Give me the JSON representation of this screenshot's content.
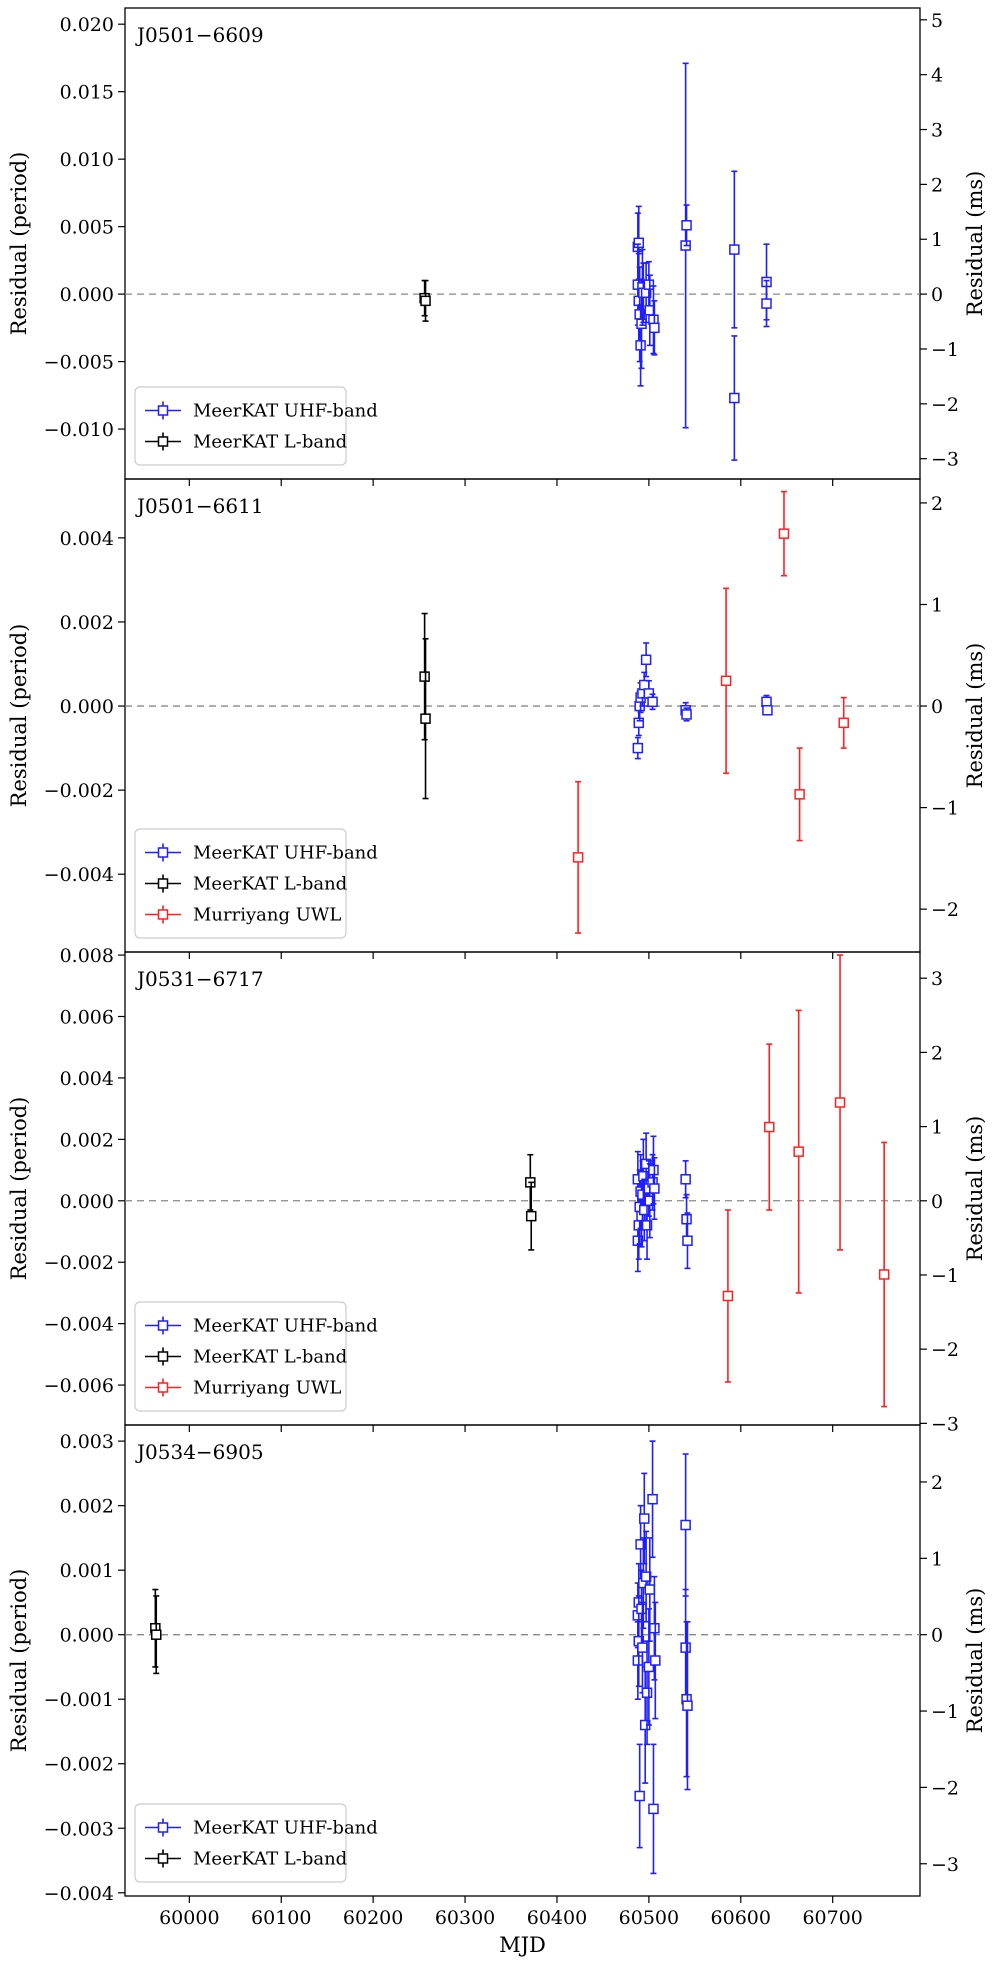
{
  "chart_data": {
    "type": "scatter",
    "subtype": "timing residuals with error bars",
    "xlabel": "MJD",
    "xlim": [
      59930,
      60795
    ],
    "xticks": [
      60000,
      60100,
      60200,
      60300,
      60400,
      60500,
      60600,
      60700
    ],
    "xtick_labels": [
      "60000",
      "60100",
      "60200",
      "60300",
      "60400",
      "60500",
      "60600",
      "60700"
    ],
    "ylabel_left": "Residual (period)",
    "ylabel_right": "Residual (ms)",
    "grid": false,
    "legend_location": "lower-left",
    "series_styles": {
      "MeerKAT UHF-band": "#1f1fff",
      "MeerKAT L-band": "#000000",
      "Murriyang UWL": "#ff2020"
    },
    "panels": [
      {
        "pulsar": "J0501−6609",
        "ylim": [
          -0.0137,
          0.0212
        ],
        "yticks": [
          -0.01,
          -0.005,
          0.0,
          0.005,
          0.01,
          0.015,
          0.02
        ],
        "ytick_labels": [
          "−0.010",
          "−0.005",
          "0.000",
          "0.005",
          "0.010",
          "0.015",
          "0.020"
        ],
        "ms_per_period": 246,
        "right_ticks": [
          -3,
          -2,
          -1,
          0,
          1,
          2,
          3,
          4,
          5
        ],
        "right_tick_labels": [
          "−3",
          "−2",
          "−1",
          "0",
          "1",
          "2",
          "3",
          "4",
          "5"
        ],
        "legend": [
          "MeerKAT UHF-band",
          "MeerKAT L-band"
        ],
        "series": [
          {
            "name": "MeerKAT UHF-band",
            "points": [
              [
                60488,
                0.0035,
                0.0025
              ],
              [
                60489,
                0.0038,
                0.0027
              ],
              [
                60488,
                0.0007,
                0.003
              ],
              [
                60489,
                -0.0005,
                0.0035
              ],
              [
                60490,
                -0.0015,
                0.0035
              ],
              [
                60491,
                -0.0038,
                0.003
              ],
              [
                60492,
                -0.0022,
                0.0033
              ],
              [
                60493,
                0.0005,
                0.0028
              ],
              [
                60494,
                0.0001,
                0.0022
              ],
              [
                60497,
                0.0001,
                0.0022
              ],
              [
                60500,
                0.0007,
                0.0017
              ],
              [
                60501,
                -0.0012,
                0.0026
              ],
              [
                60505,
                -0.0019,
                0.0025
              ],
              [
                60506,
                -0.0025,
                0.002
              ],
              [
                60540,
                0.0036,
                0.0135
              ],
              [
                60541,
                0.0051,
                0.0015
              ],
              [
                60593,
                0.0033,
                0.0058
              ],
              [
                60593,
                -0.0077,
                0.0046
              ],
              [
                60628,
                0.0009,
                0.0028
              ],
              [
                60628,
                -0.0007,
                0.0017
              ]
            ]
          },
          {
            "name": "MeerKAT L-band",
            "points": [
              [
                60256,
                -0.0003,
                0.0013
              ],
              [
                60257,
                -0.0005,
                0.0015
              ]
            ]
          }
        ]
      },
      {
        "pulsar": "J0501−6611",
        "ylim": [
          -0.00585,
          0.0054
        ],
        "yticks": [
          -0.004,
          -0.002,
          0.0,
          0.002,
          0.004
        ],
        "ytick_labels": [
          "−0.004",
          "−0.002",
          "0.000",
          "0.002",
          "0.004"
        ],
        "ms_per_period": 414,
        "right_ticks": [
          -2,
          -1,
          0,
          1,
          2
        ],
        "right_tick_labels": [
          "−2",
          "−1",
          "0",
          "1",
          "2"
        ],
        "legend": [
          "MeerKAT UHF-band",
          "MeerKAT L-band",
          "Murriyang UWL"
        ],
        "series": [
          {
            "name": "MeerKAT UHF-band",
            "points": [
              [
                60488,
                -0.001,
                0.00025
              ],
              [
                60489,
                -0.0004,
                0.0003
              ],
              [
                60490,
                0.0,
                0.00035
              ],
              [
                60491,
                0.0002,
                0.00035
              ],
              [
                60493,
                0.0003,
                0.0003
              ],
              [
                60495,
                0.0005,
                0.0003
              ],
              [
                60497,
                0.0011,
                0.0004
              ],
              [
                60500,
                0.0003,
                0.0003
              ],
              [
                60504,
                0.0001,
                0.00018
              ],
              [
                60540,
                -0.0001,
                0.00018
              ],
              [
                60541,
                -0.0002,
                0.00015
              ],
              [
                60628,
                0.0001,
                0.00015
              ],
              [
                60629,
                -0.0001,
                0.0001
              ]
            ]
          },
          {
            "name": "MeerKAT L-band",
            "points": [
              [
                60256,
                0.0007,
                0.0015
              ],
              [
                60257,
                -0.0003,
                0.0019
              ]
            ]
          },
          {
            "name": "Murriyang UWL",
            "points": [
              [
                60423,
                -0.0036,
                0.0018
              ],
              [
                60584,
                0.0006,
                0.0022
              ],
              [
                60647,
                0.0041,
                0.001
              ],
              [
                60664,
                -0.0021,
                0.0011
              ],
              [
                60712,
                -0.0004,
                0.0006
              ]
            ]
          }
        ]
      },
      {
        "pulsar": "J0531−6717",
        "ylim": [
          -0.0073,
          0.0081
        ],
        "yticks": [
          -0.006,
          -0.004,
          -0.002,
          0.0,
          0.002,
          0.004,
          0.006,
          0.008
        ],
        "ytick_labels": [
          "−0.006",
          "−0.004",
          "−0.002",
          "0.000",
          "0.002",
          "0.004",
          "0.006",
          "0.008"
        ],
        "ms_per_period": 414,
        "right_ticks": [
          -3,
          -2,
          -1,
          0,
          1,
          2,
          3
        ],
        "right_tick_labels": [
          "−3",
          "−2",
          "−1",
          "0",
          "1",
          "2",
          "3"
        ],
        "legend": [
          "MeerKAT UHF-band",
          "MeerKAT L-band",
          "Murriyang UWL"
        ],
        "series": [
          {
            "name": "MeerKAT UHF-band",
            "points": [
              [
                60488,
                0.0007,
                0.0009
              ],
              [
                60488,
                -0.0013,
                0.001
              ],
              [
                60489,
                -0.0008,
                0.0011
              ],
              [
                60490,
                -0.0002,
                0.0012
              ],
              [
                60491,
                0.0003,
                0.0012
              ],
              [
                60492,
                -0.0005,
                0.001
              ],
              [
                60493,
                0.0002,
                0.0011
              ],
              [
                60494,
                0.0008,
                0.0012
              ],
              [
                60495,
                -0.0003,
                0.001
              ],
              [
                60497,
                0.0012,
                0.001
              ],
              [
                60498,
                -0.0008,
                0.0011
              ],
              [
                60500,
                0.0004,
                0.0009
              ],
              [
                60501,
                0.0,
                0.0012
              ],
              [
                60504,
                0.0006,
                0.0009
              ],
              [
                60505,
                0.001,
                0.0011
              ],
              [
                60506,
                0.0004,
                0.001
              ],
              [
                60540,
                0.0007,
                0.0006
              ],
              [
                60541,
                -0.0006,
                0.0008
              ],
              [
                60542,
                -0.0013,
                0.0009
              ]
            ]
          },
          {
            "name": "MeerKAT L-band",
            "points": [
              [
                60371,
                0.0006,
                0.0009
              ],
              [
                60372,
                -0.0005,
                0.0011
              ]
            ]
          },
          {
            "name": "Murriyang UWL",
            "points": [
              [
                60586,
                -0.0031,
                0.0028
              ],
              [
                60631,
                0.0024,
                0.0027
              ],
              [
                60663,
                0.0016,
                0.0046
              ],
              [
                60708,
                0.0032,
                0.0048
              ],
              [
                60756,
                -0.0024,
                0.0043
              ]
            ]
          }
        ]
      },
      {
        "pulsar": "J0534−6905",
        "ylim": [
          -0.00405,
          0.00325
        ],
        "yticks": [
          -0.004,
          -0.003,
          -0.002,
          -0.001,
          0.0,
          0.001,
          0.002,
          0.003
        ],
        "ytick_labels": [
          "−0.004",
          "−0.003",
          "−0.002",
          "−0.001",
          "0.000",
          "0.001",
          "0.002",
          "0.003"
        ],
        "ms_per_period": 845,
        "right_ticks": [
          -3,
          -2,
          -1,
          0,
          1,
          2
        ],
        "right_tick_labels": [
          "−3",
          "−2",
          "−1",
          "0",
          "1",
          "2"
        ],
        "legend": [
          "MeerKAT UHF-band",
          "MeerKAT L-band"
        ],
        "series": [
          {
            "name": "MeerKAT UHF-band",
            "points": [
              [
                60488,
                0.0003,
                0.0005
              ],
              [
                60488,
                -0.0004,
                0.0006
              ],
              [
                60489,
                0.0005,
                0.0006
              ],
              [
                60489,
                -0.0001,
                0.0007
              ],
              [
                60490,
                -0.0025,
                0.0008
              ],
              [
                60491,
                0.0014,
                0.0006
              ],
              [
                60492,
                0.0004,
                0.0006
              ],
              [
                60493,
                -0.0002,
                0.0007
              ],
              [
                60494,
                0.0008,
                0.0007
              ],
              [
                60495,
                0.0018,
                0.0007
              ],
              [
                60496,
                -0.0014,
                0.0009
              ],
              [
                60497,
                0.0009,
                0.0007
              ],
              [
                60498,
                -0.0009,
                0.0008
              ],
              [
                60500,
                -0.0005,
                0.0009
              ],
              [
                60501,
                0.0007,
                0.0008
              ],
              [
                60504,
                0.0021,
                0.0009
              ],
              [
                60505,
                -0.0027,
                0.001
              ],
              [
                60506,
                0.0001,
                0.0008
              ],
              [
                60507,
                -0.0004,
                0.0009
              ],
              [
                60540,
                0.0017,
                0.0011
              ],
              [
                60540,
                -0.0002,
                0.0009
              ],
              [
                60541,
                -0.001,
                0.0012
              ],
              [
                60542,
                -0.0011,
                0.0013
              ]
            ]
          },
          {
            "name": "MeerKAT L-band",
            "points": [
              [
                59963,
                0.0001,
                0.0006
              ],
              [
                59964,
                0.0,
                0.0006
              ]
            ]
          }
        ]
      }
    ]
  }
}
